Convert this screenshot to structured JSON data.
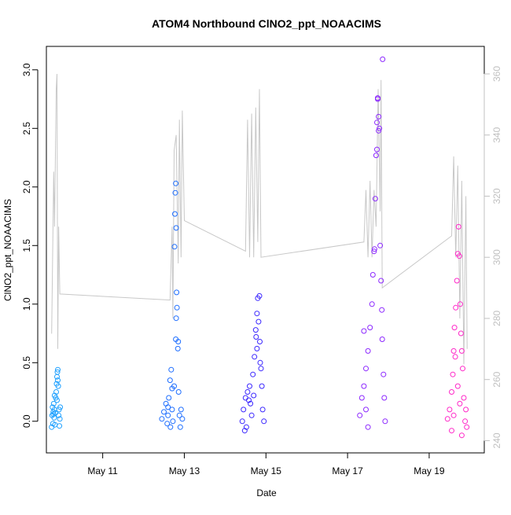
{
  "chart_data": {
    "type": "scatter",
    "title": "ATOM4 Northbound ClNO2_ppt_NOAACIMS",
    "xlabel": "Date",
    "ylabel": "ClNO2_ppt_NOAACIMS",
    "x_unit": "days of May 2018",
    "xlim": [
      9.62,
      20.35
    ],
    "ylim": [
      -0.27,
      3.2
    ],
    "y_ticks": [
      "0.0",
      "0.5",
      "1.0",
      "1.5",
      "2.0",
      "2.5",
      "3.0"
    ],
    "x_ticks": [
      {
        "x": 11,
        "label": "May 11"
      },
      {
        "x": 13,
        "label": "May 13"
      },
      {
        "x": 15,
        "label": "May 15"
      },
      {
        "x": 17,
        "label": "May 17"
      },
      {
        "x": 19,
        "label": "May 19"
      }
    ],
    "y2_lim": [
      236,
      369
    ],
    "y2_ticks": [
      "240",
      "260",
      "280",
      "300",
      "320",
      "340",
      "360"
    ],
    "secondary_line_color": "#c8c8c8",
    "series": [
      {
        "color": "#1ea0ff",
        "points": [
          [
            9.75,
            -0.05
          ],
          [
            9.76,
            0.05
          ],
          [
            9.77,
            0.12
          ],
          [
            9.78,
            -0.02
          ],
          [
            9.79,
            0.08
          ],
          [
            9.8,
            0.15
          ],
          [
            9.81,
            0.03
          ],
          [
            9.82,
            0.1
          ],
          [
            9.83,
            -0.03
          ],
          [
            9.84,
            0.07
          ],
          [
            9.85,
            0.2
          ],
          [
            9.86,
            0.25
          ],
          [
            9.87,
            0.32
          ],
          [
            9.88,
            0.38
          ],
          [
            9.89,
            0.42
          ],
          [
            9.9,
            0.35
          ],
          [
            9.91,
            0.3
          ],
          [
            9.92,
            0.05
          ],
          [
            9.93,
            0.1
          ],
          [
            9.94,
            -0.04
          ],
          [
            9.95,
            0.02
          ],
          [
            9.96,
            0.12
          ],
          [
            9.9,
            0.44
          ],
          [
            9.88,
            0.18
          ],
          [
            9.82,
            0.22
          ],
          [
            9.79,
            0.06
          ]
        ]
      },
      {
        "color": "#1e6eff",
        "points": [
          [
            12.45,
            0.02
          ],
          [
            12.5,
            0.08
          ],
          [
            12.55,
            0.15
          ],
          [
            12.58,
            -0.02
          ],
          [
            12.6,
            0.05
          ],
          [
            12.62,
            0.2
          ],
          [
            12.65,
            0.35
          ],
          [
            12.68,
            0.44
          ],
          [
            12.7,
            0.1
          ],
          [
            12.72,
            0.0
          ],
          [
            12.75,
            0.3
          ],
          [
            12.76,
            1.49
          ],
          [
            12.77,
            1.77
          ],
          [
            12.78,
            1.95
          ],
          [
            12.79,
            2.03
          ],
          [
            12.8,
            1.65
          ],
          [
            12.81,
            1.1
          ],
          [
            12.82,
            0.97
          ],
          [
            12.8,
            0.88
          ],
          [
            12.79,
            0.7
          ],
          [
            12.85,
            0.68
          ],
          [
            12.84,
            0.62
          ],
          [
            12.86,
            0.25
          ],
          [
            12.88,
            0.05
          ],
          [
            12.9,
            -0.05
          ],
          [
            12.92,
            0.1
          ],
          [
            12.95,
            0.02
          ],
          [
            12.6,
            0.12
          ],
          [
            12.66,
            -0.05
          ],
          [
            12.7,
            0.28
          ]
        ]
      },
      {
        "color": "#3c28ff",
        "points": [
          [
            14.42,
            0.0
          ],
          [
            14.45,
            0.1
          ],
          [
            14.5,
            0.2
          ],
          [
            14.52,
            -0.05
          ],
          [
            14.55,
            0.25
          ],
          [
            14.6,
            0.3
          ],
          [
            14.62,
            0.15
          ],
          [
            14.65,
            0.05
          ],
          [
            14.68,
            0.4
          ],
          [
            14.7,
            0.22
          ],
          [
            14.72,
            0.55
          ],
          [
            14.75,
            0.78
          ],
          [
            14.78,
            0.92
          ],
          [
            14.8,
            1.05
          ],
          [
            14.82,
            0.85
          ],
          [
            14.85,
            0.68
          ],
          [
            14.86,
            0.5
          ],
          [
            14.88,
            0.45
          ],
          [
            14.9,
            0.3
          ],
          [
            14.92,
            0.1
          ],
          [
            14.95,
            0.0
          ],
          [
            14.78,
            0.62
          ],
          [
            14.84,
            1.07
          ],
          [
            14.76,
            0.72
          ],
          [
            14.58,
            0.18
          ],
          [
            14.48,
            -0.08
          ]
        ]
      },
      {
        "color": "#8c28ff",
        "points": [
          [
            17.3,
            0.05
          ],
          [
            17.35,
            0.2
          ],
          [
            17.4,
            0.3
          ],
          [
            17.45,
            0.45
          ],
          [
            17.5,
            0.6
          ],
          [
            17.55,
            0.8
          ],
          [
            17.6,
            1.0
          ],
          [
            17.62,
            1.25
          ],
          [
            17.65,
            1.45
          ],
          [
            17.68,
            1.9
          ],
          [
            17.7,
            2.27
          ],
          [
            17.72,
            2.55
          ],
          [
            17.74,
            2.75
          ],
          [
            17.76,
            2.6
          ],
          [
            17.78,
            2.5
          ],
          [
            17.8,
            1.5
          ],
          [
            17.82,
            1.2
          ],
          [
            17.84,
            0.95
          ],
          [
            17.85,
            0.7
          ],
          [
            17.86,
            3.09
          ],
          [
            17.88,
            0.4
          ],
          [
            17.9,
            0.2
          ],
          [
            17.92,
            0.0
          ],
          [
            17.4,
            0.77
          ],
          [
            17.45,
            0.1
          ],
          [
            17.5,
            -0.05
          ],
          [
            17.72,
            2.32
          ],
          [
            17.74,
            2.76
          ],
          [
            17.76,
            2.48
          ],
          [
            17.66,
            1.47
          ]
        ]
      },
      {
        "color": "#ff28c8",
        "points": [
          [
            19.45,
            0.02
          ],
          [
            19.5,
            0.1
          ],
          [
            19.55,
            0.25
          ],
          [
            19.58,
            0.4
          ],
          [
            19.6,
            0.6
          ],
          [
            19.62,
            0.8
          ],
          [
            19.65,
            0.97
          ],
          [
            19.68,
            1.2
          ],
          [
            19.7,
            1.43
          ],
          [
            19.72,
            1.66
          ],
          [
            19.74,
            1.41
          ],
          [
            19.76,
            1.0
          ],
          [
            19.78,
            0.75
          ],
          [
            19.8,
            0.6
          ],
          [
            19.82,
            0.45
          ],
          [
            19.85,
            0.2
          ],
          [
            19.88,
            0.0
          ],
          [
            19.9,
            0.1
          ],
          [
            19.92,
            -0.05
          ],
          [
            19.6,
            0.05
          ],
          [
            19.55,
            -0.08
          ],
          [
            19.7,
            0.3
          ],
          [
            19.75,
            0.15
          ],
          [
            19.8,
            -0.12
          ],
          [
            19.64,
            0.55
          ]
        ]
      }
    ],
    "secondary_line": [
      [
        9.75,
        275
      ],
      [
        9.8,
        328
      ],
      [
        9.82,
        310
      ],
      [
        9.86,
        355
      ],
      [
        9.88,
        360
      ],
      [
        9.9,
        270
      ],
      [
        9.92,
        310
      ],
      [
        9.95,
        288
      ],
      [
        12.65,
        286
      ],
      [
        12.7,
        310
      ],
      [
        12.72,
        280
      ],
      [
        12.75,
        335
      ],
      [
        12.8,
        340
      ],
      [
        12.85,
        298
      ],
      [
        12.88,
        345
      ],
      [
        12.92,
        300
      ],
      [
        12.95,
        348
      ],
      [
        13.0,
        312
      ],
      [
        14.5,
        302
      ],
      [
        14.55,
        345
      ],
      [
        14.6,
        300
      ],
      [
        14.65,
        347
      ],
      [
        14.7,
        300
      ],
      [
        14.75,
        349
      ],
      [
        14.8,
        305
      ],
      [
        14.84,
        355
      ],
      [
        14.88,
        300
      ],
      [
        17.4,
        305
      ],
      [
        17.45,
        322
      ],
      [
        17.5,
        300
      ],
      [
        17.55,
        325
      ],
      [
        17.6,
        300
      ],
      [
        17.65,
        322
      ],
      [
        17.7,
        310
      ],
      [
        17.75,
        355
      ],
      [
        17.8,
        315
      ],
      [
        17.82,
        358
      ],
      [
        17.85,
        290
      ],
      [
        19.55,
        307
      ],
      [
        19.6,
        333
      ],
      [
        19.65,
        300
      ],
      [
        19.7,
        330
      ],
      [
        19.75,
        280
      ],
      [
        19.8,
        325
      ],
      [
        19.85,
        265
      ],
      [
        19.9,
        320
      ],
      [
        19.93,
        270
      ]
    ]
  }
}
